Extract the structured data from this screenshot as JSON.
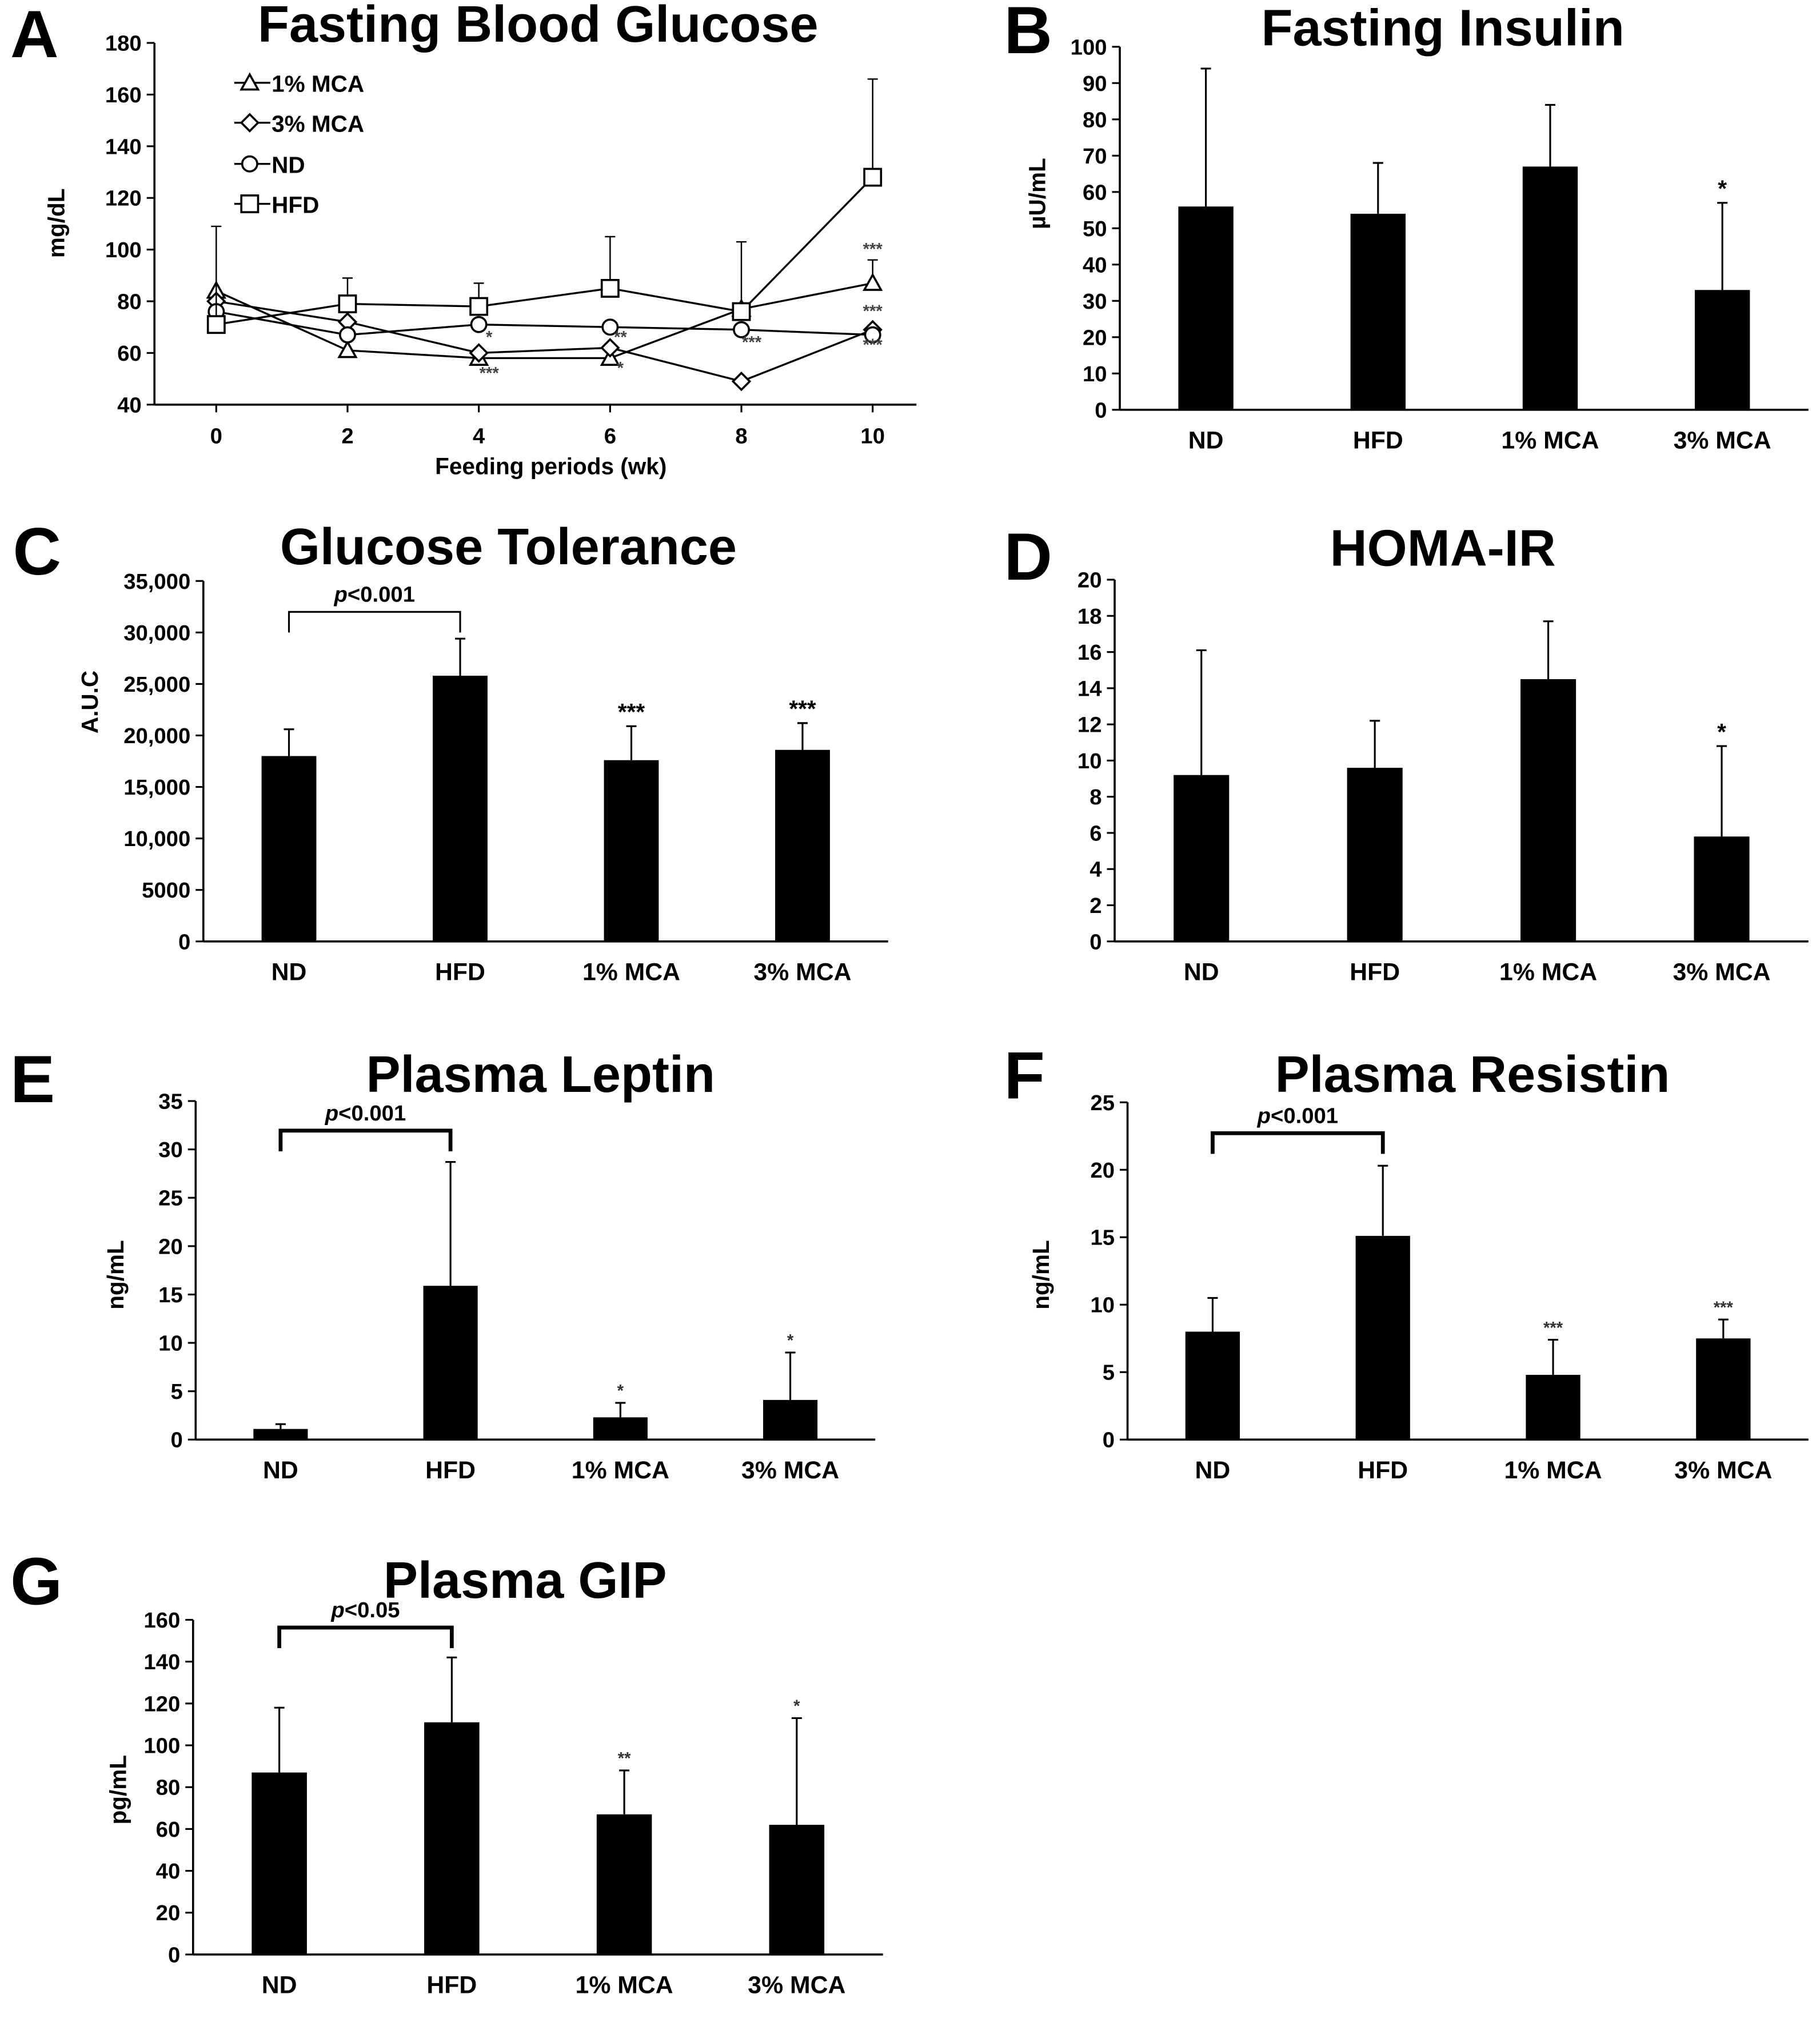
{
  "chart_data": [
    {
      "panel": "A",
      "type": "line",
      "title": "Fasting Blood Glucose",
      "xlabel": "Feeding periods (wk)",
      "ylabel": "mg/dL",
      "ylim": [
        40,
        180
      ],
      "yticks": [
        40,
        60,
        80,
        100,
        120,
        140,
        160,
        180
      ],
      "x": [
        0,
        2,
        4,
        6,
        8,
        10
      ],
      "legend_position": "top-left",
      "series": [
        {
          "name": "1% MCA",
          "marker": "triangle",
          "values": [
            84,
            61,
            58,
            58,
            77,
            87
          ],
          "errors": [
            0,
            0,
            0,
            0,
            0,
            9
          ]
        },
        {
          "name": "3% MCA",
          "marker": "diamond",
          "values": [
            80,
            72,
            60,
            62,
            49,
            69
          ],
          "errors": [
            0,
            0,
            0,
            0,
            0,
            0
          ]
        },
        {
          "name": "ND",
          "marker": "circle",
          "values": [
            76,
            67,
            71,
            70,
            69,
            67
          ],
          "errors": [
            0,
            0,
            0,
            0,
            0,
            0
          ]
        },
        {
          "name": "HFD",
          "marker": "square",
          "values": [
            71,
            79,
            78,
            85,
            76,
            128
          ],
          "errors": [
            38,
            10,
            9,
            20,
            27,
            38
          ]
        }
      ],
      "annotations": [
        {
          "text": "***",
          "x": 10,
          "y": 98
        },
        {
          "text": "***",
          "x": 10,
          "y": 74
        },
        {
          "text": "***",
          "x": 10,
          "y": 61
        },
        {
          "text": "***",
          "x": 8,
          "y": 62
        },
        {
          "text": "**",
          "x": 6,
          "y": 64
        },
        {
          "text": "*",
          "x": 6,
          "y": 52
        },
        {
          "text": "***",
          "x": 4,
          "y": 50
        },
        {
          "text": "*",
          "x": 4,
          "y": 64
        }
      ]
    },
    {
      "panel": "B",
      "type": "bar",
      "title": "Fasting Insulin",
      "ylabel": "µU/mL",
      "ylim": [
        0,
        100
      ],
      "yticks": [
        0,
        10,
        20,
        30,
        40,
        50,
        60,
        70,
        80,
        90,
        100
      ],
      "categories": [
        "ND",
        "HFD",
        "1% MCA",
        "3% MCA"
      ],
      "values": [
        56,
        54,
        67,
        33
      ],
      "errors": [
        38,
        14,
        17,
        24
      ],
      "significance": [
        "",
        "",
        "",
        "*"
      ]
    },
    {
      "panel": "C",
      "type": "bar",
      "title": "Glucose Tolerance",
      "ylabel": "A.U.C",
      "ylim": [
        0,
        35000
      ],
      "yticks": [
        0,
        5000,
        10000,
        15000,
        20000,
        25000,
        30000,
        35000
      ],
      "ytick_labels": [
        "0",
        "5000",
        "10,000",
        "15,000",
        "20,000",
        "25,000",
        "30,000",
        "35,000"
      ],
      "categories": [
        "ND",
        "HFD",
        "1% MCA",
        "3% MCA"
      ],
      "values": [
        18000,
        25800,
        17600,
        18600
      ],
      "errors": [
        2600,
        3600,
        3300,
        2600
      ],
      "significance": [
        "",
        "",
        "***",
        "***"
      ],
      "bracket": {
        "from": "ND",
        "to": "HFD",
        "label_prefix": "p",
        "label_suffix": "<0.001"
      }
    },
    {
      "panel": "D",
      "type": "bar",
      "title": "HOMA-IR",
      "ylabel": "",
      "ylim": [
        0,
        20
      ],
      "yticks": [
        0,
        2,
        4,
        6,
        8,
        10,
        12,
        14,
        16,
        18,
        20
      ],
      "categories": [
        "ND",
        "HFD",
        "1% MCA",
        "3% MCA"
      ],
      "values": [
        9.2,
        9.6,
        14.5,
        5.8
      ],
      "errors": [
        6.9,
        2.6,
        3.2,
        5.0
      ],
      "significance": [
        "",
        "",
        "",
        "*"
      ]
    },
    {
      "panel": "E",
      "type": "bar",
      "title": "Plasma Leptin",
      "ylabel": "ng/mL",
      "ylim": [
        0,
        35
      ],
      "yticks": [
        0,
        5,
        10,
        15,
        20,
        25,
        30,
        35
      ],
      "categories": [
        "ND",
        "HFD",
        "1% MCA",
        "3% MCA"
      ],
      "values": [
        1.1,
        15.9,
        2.3,
        4.1
      ],
      "errors": [
        0.5,
        12.8,
        1.5,
        4.9
      ],
      "significance": [
        "",
        "",
        "*",
        "*"
      ],
      "bracket": {
        "from": "ND",
        "to": "HFD",
        "label_prefix": "p",
        "label_suffix": "<0.001"
      }
    },
    {
      "panel": "F",
      "type": "bar",
      "title": "Plasma Resistin",
      "ylabel": "ng/mL",
      "ylim": [
        0,
        25
      ],
      "yticks": [
        0,
        5,
        10,
        15,
        20,
        25
      ],
      "categories": [
        "ND",
        "HFD",
        "1% MCA",
        "3% MCA"
      ],
      "values": [
        8.0,
        15.1,
        4.8,
        7.5
      ],
      "errors": [
        2.5,
        5.2,
        2.6,
        1.4
      ],
      "significance": [
        "",
        "",
        "***",
        "***"
      ],
      "bracket": {
        "from": "ND",
        "to": "HFD",
        "label_prefix": "p",
        "label_suffix": "<0.001"
      }
    },
    {
      "panel": "G",
      "type": "bar",
      "title": "Plasma GIP",
      "ylabel": "pg/mL",
      "ylim": [
        0,
        160
      ],
      "yticks": [
        0,
        20,
        40,
        60,
        80,
        100,
        120,
        140,
        160
      ],
      "categories": [
        "ND",
        "HFD",
        "1% MCA",
        "3% MCA"
      ],
      "values": [
        87,
        111,
        67,
        62
      ],
      "errors": [
        31,
        31,
        21,
        51
      ],
      "significance": [
        "",
        "",
        "**",
        "*"
      ],
      "bracket": {
        "from": "ND",
        "to": "HFD",
        "label_prefix": "p",
        "label_suffix": "<0.05"
      }
    }
  ]
}
